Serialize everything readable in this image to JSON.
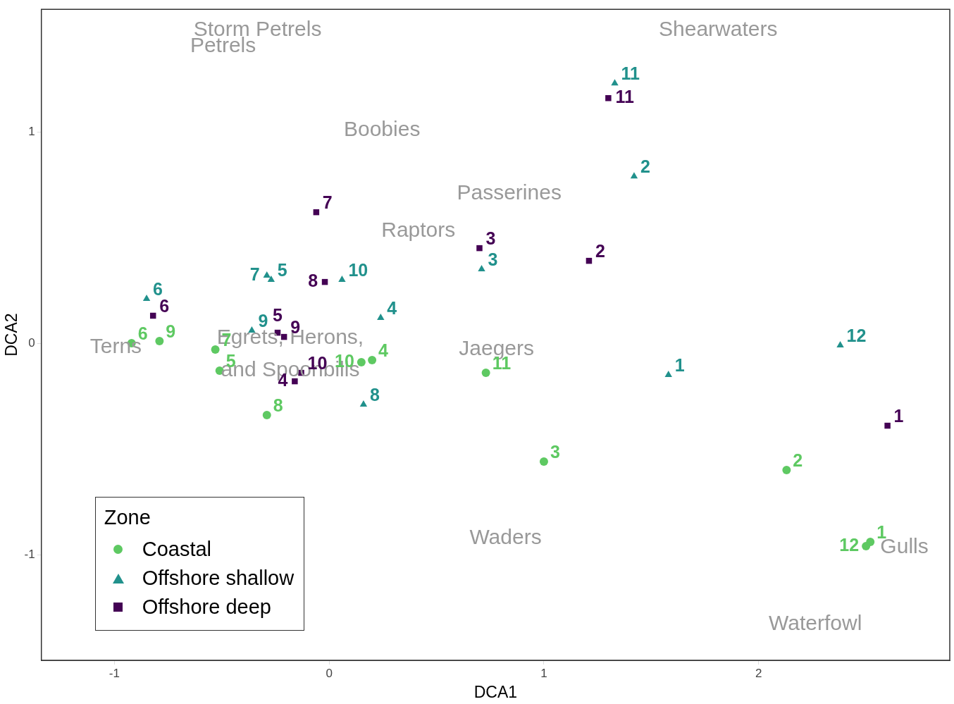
{
  "chart_data": {
    "type": "scatter",
    "xlabel": "DCA1",
    "ylabel": "DCA2",
    "legend_title": "Zone",
    "legend": "bottom left",
    "grid": false,
    "xlim": [
      -1.34,
      2.89
    ],
    "ylim": [
      -1.5,
      1.58
    ],
    "xticks": [
      -1,
      0,
      1,
      2
    ],
    "yticks": [
      -1,
      0,
      1
    ],
    "series": [
      {
        "name": "Coastal",
        "color": "#5ec962",
        "marker": "circle",
        "x": [
          2.52,
          2.13,
          1.0,
          0.2,
          -0.51,
          -0.92,
          -0.53,
          -0.29,
          -0.79,
          0.15,
          0.73,
          2.5
        ],
        "values": [
          -0.94,
          -0.6,
          -0.56,
          -0.08,
          -0.13,
          0.0,
          -0.03,
          -0.34,
          0.01,
          -0.09,
          -0.14,
          -0.96
        ]
      },
      {
        "name": "Offshore shallow",
        "color": "#21918c",
        "marker": "triangle",
        "x": [
          1.58,
          1.42,
          0.71,
          0.24,
          -0.27,
          -0.85,
          -0.29,
          0.16,
          -0.36,
          0.06,
          1.33,
          2.38
        ],
        "values": [
          -0.15,
          0.79,
          0.35,
          0.12,
          0.3,
          0.21,
          0.32,
          -0.29,
          0.06,
          0.3,
          1.23,
          -0.01
        ]
      },
      {
        "name": "Offshore deep",
        "color": "#440154",
        "marker": "square",
        "x": [
          2.6,
          1.21,
          0.7,
          -0.16,
          -0.24,
          -0.82,
          -0.06,
          -0.02,
          -0.21,
          -0.13,
          1.3
        ],
        "values": [
          -0.39,
          0.39,
          0.45,
          -0.18,
          0.05,
          0.13,
          0.62,
          0.29,
          0.03,
          -0.14,
          1.16
        ]
      }
    ],
    "annotations": [
      "Storm Petrels",
      "Petrels",
      "Shearwaters",
      "Boobies",
      "Passerines",
      "Raptors",
      "Terns",
      "Egrets, Herons,\nand Spoonbills",
      "Jaegers",
      "Waders",
      "Gulls",
      "Waterfowl",
      {
        "text": "1",
        "x": 2.52,
        "y": -0.94
      },
      {
        "text": "2",
        "x": 2.13,
        "y": -0.6
      },
      {
        "text": "3",
        "x": 1.0,
        "y": -0.56
      },
      {
        "text": "4",
        "x": 0.2,
        "y": -0.08
      },
      {
        "text": "5",
        "x": -0.51,
        "y": -0.13
      },
      {
        "text": "6",
        "x": -0.92,
        "y": 0.0
      },
      {
        "text": "7",
        "x": -0.53,
        "y": -0.03
      },
      {
        "text": "8",
        "x": -0.29,
        "y": -0.34
      },
      {
        "text": "9",
        "x": -0.79,
        "y": 0.01
      },
      {
        "text": "10",
        "x": 0.15,
        "y": -0.09
      },
      {
        "text": "11",
        "x": 0.73,
        "y": -0.14
      },
      {
        "text": "12",
        "x": 2.5,
        "y": -0.96
      },
      {
        "text": "1",
        "x": 1.58,
        "y": -0.15
      },
      {
        "text": "2",
        "x": 1.42,
        "y": 0.79
      },
      {
        "text": "3",
        "x": 0.71,
        "y": 0.35
      },
      {
        "text": "4",
        "x": 0.24,
        "y": 0.12
      },
      {
        "text": "5",
        "x": -0.27,
        "y": 0.3
      },
      {
        "text": "6",
        "x": -0.85,
        "y": 0.21
      },
      {
        "text": "7",
        "x": -0.29,
        "y": 0.32
      },
      {
        "text": "8",
        "x": 0.16,
        "y": -0.29
      },
      {
        "text": "9",
        "x": -0.36,
        "y": 0.06
      },
      {
        "text": "10",
        "x": 0.06,
        "y": 0.3
      },
      {
        "text": "11",
        "x": 1.33,
        "y": 1.23
      },
      {
        "text": "12",
        "x": 2.38,
        "y": -0.01
      },
      {
        "text": "1",
        "x": 2.6,
        "y": -0.39
      },
      {
        "text": "2",
        "x": 1.21,
        "y": 0.39
      },
      {
        "text": "3",
        "x": 0.7,
        "y": 0.45
      },
      {
        "text": "4",
        "x": -0.16,
        "y": -0.18
      },
      {
        "text": "5",
        "x": -0.24,
        "y": 0.05
      },
      {
        "text": "6",
        "x": -0.82,
        "y": 0.13
      },
      {
        "text": "7",
        "x": -0.06,
        "y": 0.62
      },
      {
        "text": "8",
        "x": -0.02,
        "y": 0.29
      },
      {
        "text": "9",
        "x": -0.21,
        "y": 0.03
      },
      {
        "text": "10",
        "x": -0.13,
        "y": -0.14
      },
      {
        "text": "11",
        "x": 1.3,
        "y": 1.16
      }
    ]
  }
}
